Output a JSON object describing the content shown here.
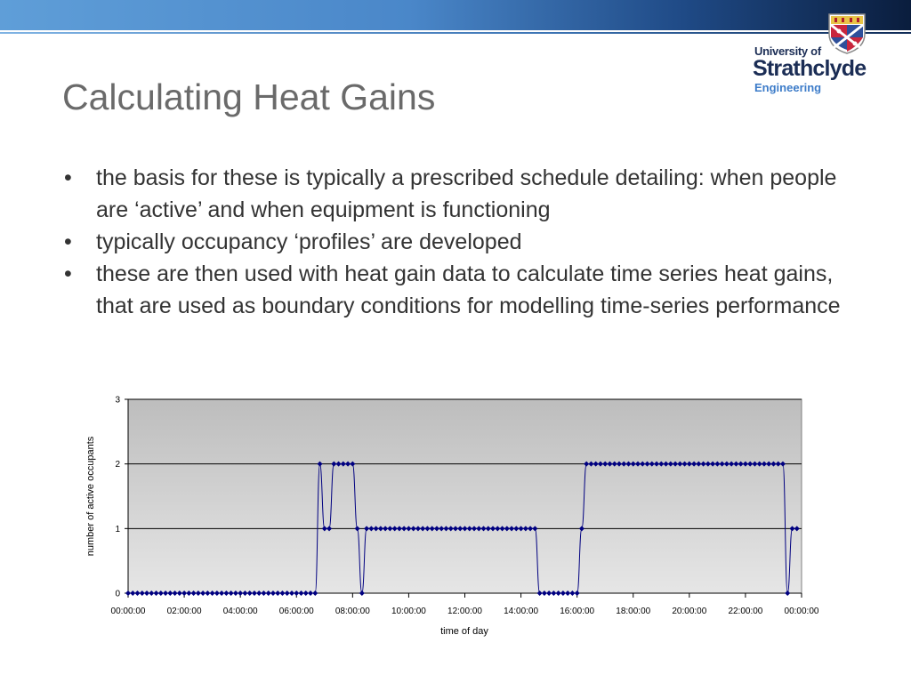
{
  "header": {
    "logo": {
      "line1": "University of",
      "line2": "Strathclyde",
      "line3": "Engineering"
    }
  },
  "slide": {
    "title": "Calculating Heat Gains",
    "bullets": [
      "the basis for these is typically a prescribed schedule detailing: when people are ‘active’ and when equipment is functioning",
      "typically occupancy ‘profiles’ are developed",
      "these are then used with heat gain data to calculate time series heat gains, that are used as boundary conditions for modelling time-series performance"
    ],
    "bullet_symbol": "•"
  },
  "colors": {
    "series": "#000080",
    "plot_bg_top": "#bdbdbd",
    "plot_bg_bottom": "#e6e6e6",
    "title": "#6a6a6a",
    "body_text": "#333333"
  },
  "chart_data": {
    "type": "line",
    "xlabel": "time of day",
    "ylabel": "number of active occupants",
    "ylim": [
      0,
      3
    ],
    "yticks": [
      "0",
      "1",
      "2",
      "3"
    ],
    "xlim_hours": [
      0,
      24
    ],
    "xticks": [
      "00:00:00",
      "02:00:00",
      "04:00:00",
      "06:00:00",
      "08:00:00",
      "10:00:00",
      "12:00:00",
      "14:00:00",
      "16:00:00",
      "18:00:00",
      "20:00:00",
      "22:00:00",
      "00:00:00"
    ],
    "grid": "horizontal",
    "markers": "diamond",
    "interval_minutes": 10,
    "series": [
      {
        "values": [
          0,
          0,
          0,
          0,
          0,
          0,
          0,
          0,
          0,
          0,
          0,
          0,
          0,
          0,
          0,
          0,
          0,
          0,
          0,
          0,
          0,
          0,
          0,
          0,
          0,
          0,
          0,
          0,
          0,
          0,
          0,
          0,
          0,
          0,
          0,
          0,
          0,
          0,
          0,
          0,
          0,
          2,
          1,
          1,
          2,
          2,
          2,
          2,
          2,
          1,
          0,
          1,
          1,
          1,
          1,
          1,
          1,
          1,
          1,
          1,
          1,
          1,
          1,
          1,
          1,
          1,
          1,
          1,
          1,
          1,
          1,
          1,
          1,
          1,
          1,
          1,
          1,
          1,
          1,
          1,
          1,
          1,
          1,
          1,
          1,
          1,
          1,
          1,
          0,
          0,
          0,
          0,
          0,
          0,
          0,
          0,
          0,
          1,
          2,
          2,
          2,
          2,
          2,
          2,
          2,
          2,
          2,
          2,
          2,
          2,
          2,
          2,
          2,
          2,
          2,
          2,
          2,
          2,
          2,
          2,
          2,
          2,
          2,
          2,
          2,
          2,
          2,
          2,
          2,
          2,
          2,
          2,
          2,
          2,
          2,
          2,
          2,
          2,
          2,
          2,
          2,
          0,
          1,
          1
        ]
      }
    ]
  }
}
